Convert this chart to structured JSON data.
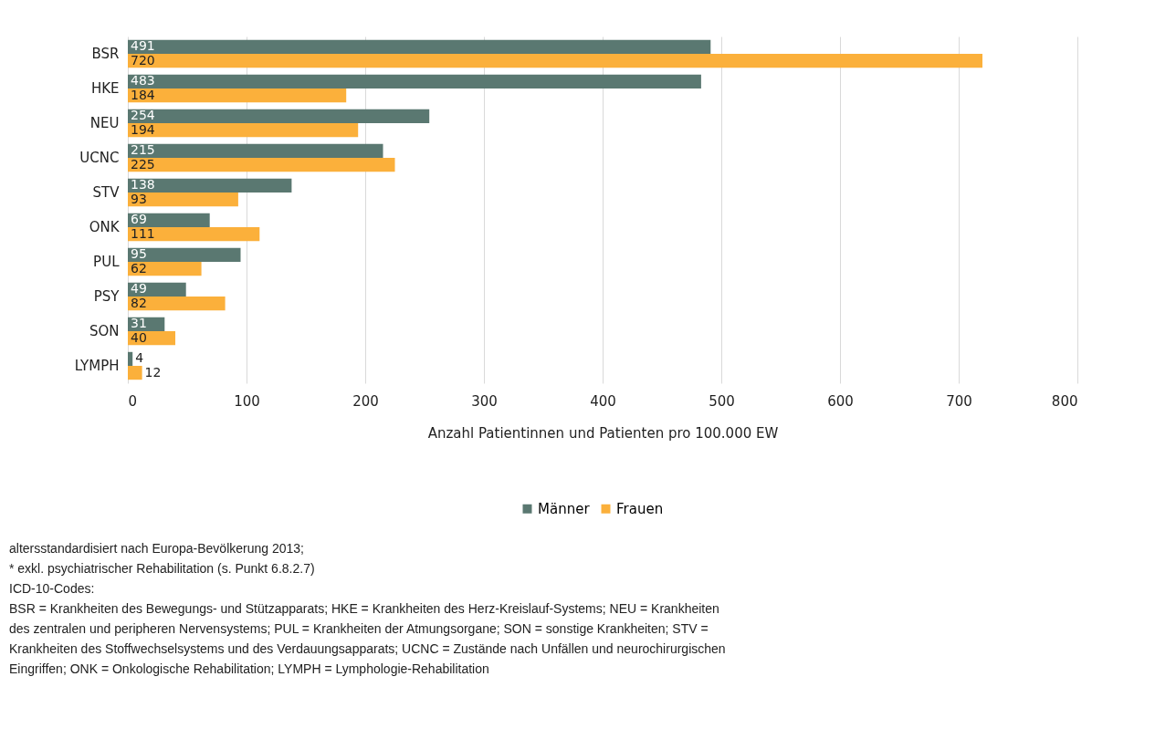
{
  "chart_data": {
    "type": "bar",
    "orientation": "horizontal",
    "categories": [
      "BSR",
      "HKE",
      "NEU",
      "UCNC",
      "STV",
      "ONK",
      "PUL",
      "PSY",
      "SON",
      "LYMPH"
    ],
    "series": [
      {
        "name": "Männer",
        "color": "#5a7871",
        "values": [
          491,
          483,
          254,
          215,
          138,
          69,
          95,
          49,
          31,
          4
        ]
      },
      {
        "name": "Frauen",
        "color": "#fbb03b",
        "values": [
          720,
          184,
          194,
          225,
          93,
          111,
          62,
          82,
          40,
          12
        ]
      }
    ],
    "xlabel": "Anzahl Patientinnen und Patienten pro 100.000 EW",
    "xlim": [
      0,
      800
    ],
    "xticks": [
      0,
      100,
      200,
      300,
      400,
      500,
      600,
      700,
      800
    ],
    "grid": "x",
    "legend": "bottom",
    "data_labels": true,
    "annotations": [
      "altersstandardisiert nach Europa-Bevölkerung 2013;",
      "* exkl. psychiatrischer Rehabilitation (s. Punkt 6.8.2.7)",
      "ICD-10-Codes:",
      "BSR = Krankheiten des Bewegungs- und Stützapparats; HKE = Krankheiten des Herz-Kreislauf-Systems; NEU = Krankheiten des zentralen und peripheren Nervensystems; PUL = Krankheiten der Atmungsorgane; SON = sonstige Krankheiten; STV = Krankheiten des Stoffwechselsystems und des Verdauungsapparats; UCNC = Zustände nach Unfällen und neurochirurgischen Eingriffen; ONK = Onkologische Rehabilitation; LYMPH = Lymphologie-Rehabilitation"
    ]
  }
}
